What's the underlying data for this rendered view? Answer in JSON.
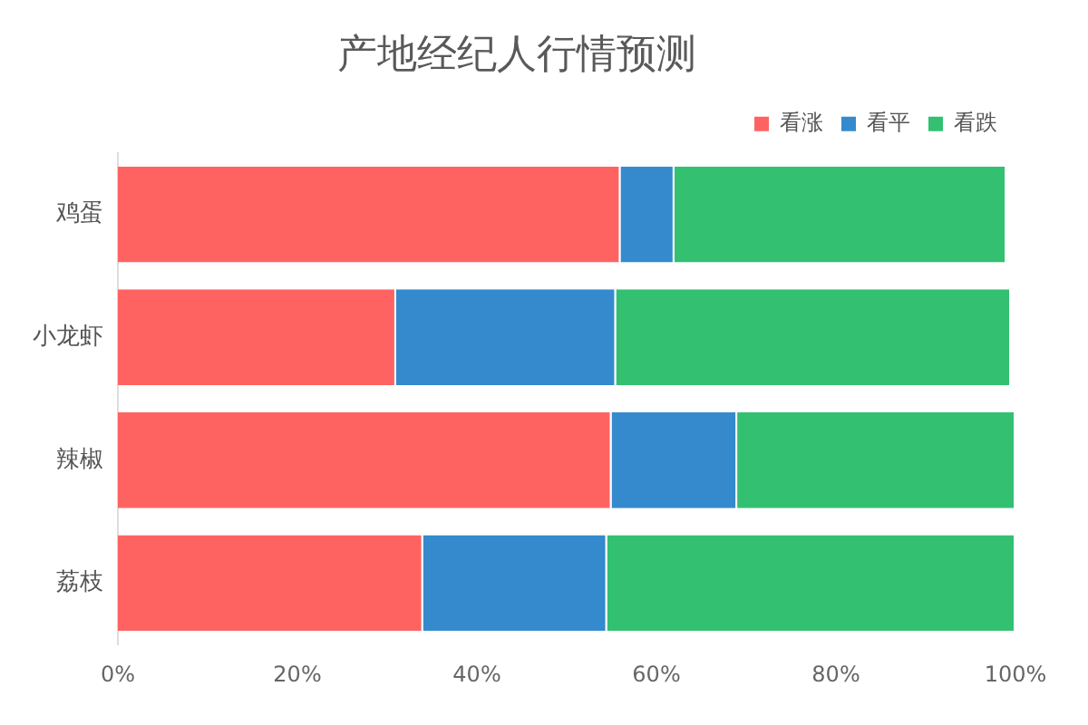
{
  "chart_data": {
    "type": "bar",
    "orientation": "horizontal",
    "stacked": true,
    "title": "产地经纪人行情预测",
    "categories": [
      "鸡蛋",
      "小龙虾",
      "辣椒",
      "荔枝"
    ],
    "series": [
      {
        "name": "看涨",
        "color": "#ff6361",
        "values": [
          56,
          31,
          55,
          34
        ]
      },
      {
        "name": "看平",
        "color": "#348acd",
        "values": [
          6,
          24.5,
          14,
          20.5
        ]
      },
      {
        "name": "看跌",
        "color": "#33c071",
        "values": [
          37,
          44,
          31,
          45.5
        ]
      }
    ],
    "xlim": [
      0,
      100
    ],
    "xticks": [
      {
        "value": 0,
        "label": "0%"
      },
      {
        "value": 20,
        "label": "20%"
      },
      {
        "value": 40,
        "label": "40%"
      },
      {
        "value": 60,
        "label": "60%"
      },
      {
        "value": 80,
        "label": "80%"
      },
      {
        "value": 100,
        "label": "100%"
      }
    ],
    "grid": false,
    "legend": "top right"
  }
}
